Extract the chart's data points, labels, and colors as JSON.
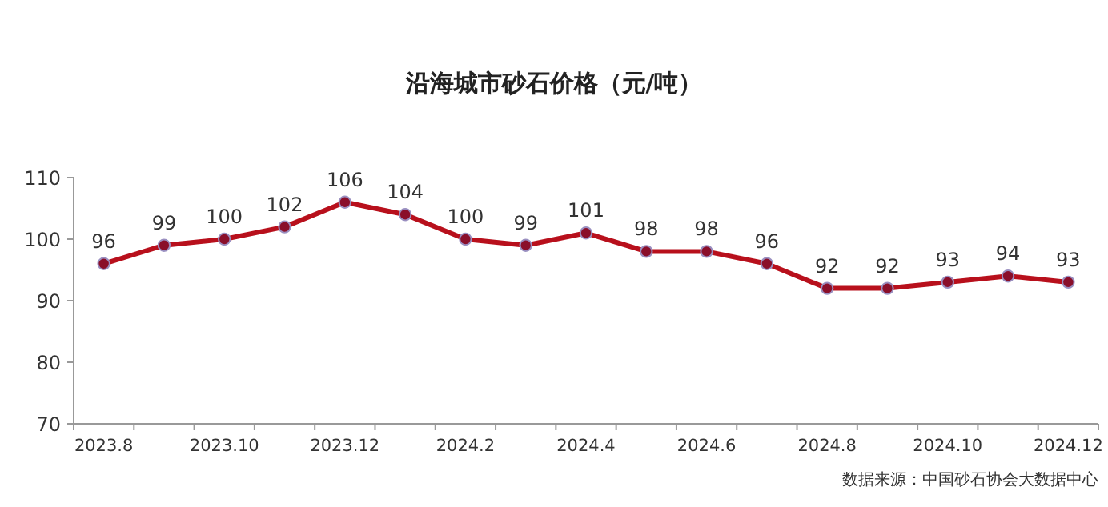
{
  "chart_data": {
    "type": "line",
    "title": "沿海城市砂石价格（元/吨）",
    "categories": [
      "2023.8",
      null,
      "2023.10",
      null,
      "2023.12",
      null,
      "2024.2",
      null,
      "2024.4",
      null,
      "2024.6",
      null,
      "2024.8",
      null,
      "2024.10",
      null,
      "2024.12"
    ],
    "series": [
      {
        "color": "#b8101c",
        "values": [
          96,
          99,
          100,
          102,
          106,
          104,
          100,
          99,
          101,
          98,
          98,
          96,
          92,
          92,
          93,
          94,
          93
        ]
      }
    ],
    "ylim": [
      70,
      110
    ],
    "yticks": [
      70,
      80,
      90,
      100,
      110
    ],
    "data_labels": true,
    "marker": "circle",
    "line_style": "solid",
    "grid": false,
    "annotations": [
      "数据来源：中国砂石协会大数据中心"
    ]
  }
}
